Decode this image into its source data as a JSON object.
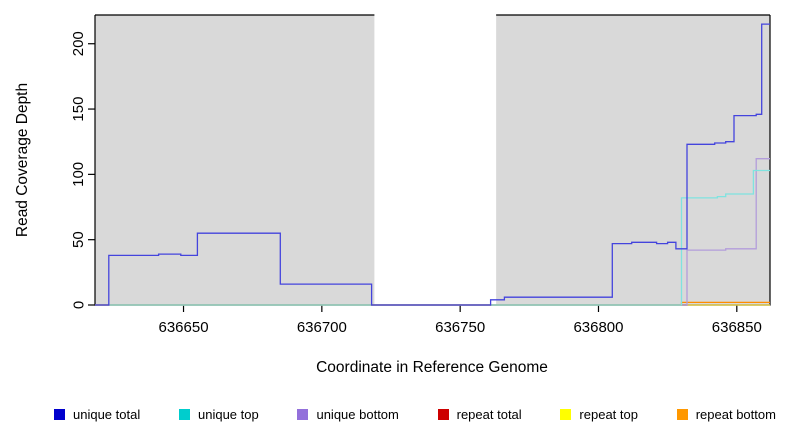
{
  "chart_data": {
    "type": "line",
    "subtype": "step-coverage",
    "title": "",
    "xlabel": "Coordinate in Reference Genome",
    "ylabel": "Read Coverage Depth",
    "xlim": [
      636618,
      636862
    ],
    "ylim": [
      0,
      222
    ],
    "xticks": [
      "636650",
      "636700",
      "636750",
      "636800",
      "636850"
    ],
    "yticks": [
      "0",
      "50",
      "100",
      "150",
      "200"
    ],
    "plot_bg": "#d9d9d9",
    "mask_region": {
      "x0": 636719,
      "x1": 636763,
      "color": "#ffffff"
    },
    "legend_position": "bottom",
    "grid": false,
    "draw_order": [
      "repeat total",
      "repeat top",
      "repeat bottom",
      "unique bottom",
      "unique top",
      "unique total"
    ],
    "series": [
      {
        "name": "unique total",
        "color": "#0000cd",
        "line_color": "#4444dd",
        "xend": 636862,
        "points": [
          [
            636618,
            0
          ],
          [
            636623,
            38
          ],
          [
            636641,
            39
          ],
          [
            636649,
            38
          ],
          [
            636655,
            55
          ],
          [
            636685,
            16
          ],
          [
            636718,
            0
          ],
          [
            636761,
            4
          ],
          [
            636766,
            6
          ],
          [
            636805,
            47
          ],
          [
            636812,
            48
          ],
          [
            636821,
            47
          ],
          [
            636825,
            48
          ],
          [
            636828,
            43
          ],
          [
            636832,
            123
          ],
          [
            636842,
            124
          ],
          [
            636846,
            125
          ],
          [
            636849,
            145
          ],
          [
            636857,
            146
          ],
          [
            636859,
            215
          ]
        ]
      },
      {
        "name": "unique top",
        "color": "#00cdcd",
        "line_color": "#7fe3e0",
        "xend": 636862,
        "points": [
          [
            636618,
            0
          ],
          [
            636830,
            82
          ],
          [
            636843,
            83
          ],
          [
            636846,
            85
          ],
          [
            636856,
            103
          ]
        ]
      },
      {
        "name": "unique bottom",
        "color": "#9370db",
        "line_color": "#b39ddb",
        "xend": 636862,
        "points": [
          [
            636618,
            0
          ],
          [
            636832,
            42
          ],
          [
            636846,
            43
          ],
          [
            636857,
            112
          ]
        ]
      },
      {
        "name": "repeat total",
        "color": "#cd0000",
        "line_color": "#cd0000",
        "xend": 636862,
        "points": [
          [
            636618,
            0
          ]
        ]
      },
      {
        "name": "repeat top",
        "color": "#ffff00",
        "line_color": "#e8ee55",
        "xend": 636862,
        "points": [
          [
            636618,
            0
          ]
        ]
      },
      {
        "name": "repeat bottom",
        "color": "#ff9800",
        "line_color": "#ff8c00",
        "xend": 636862,
        "points": [
          [
            636618,
            0
          ],
          [
            636830,
            2
          ]
        ]
      }
    ]
  }
}
